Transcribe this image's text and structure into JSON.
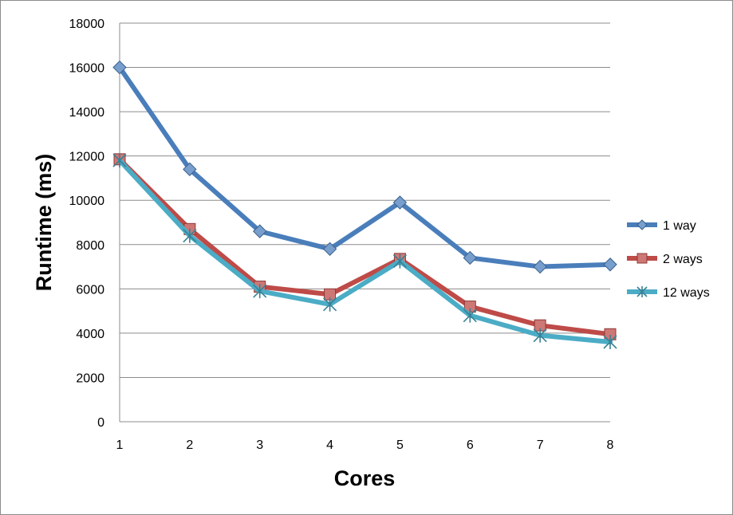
{
  "chart_data": {
    "type": "line",
    "title": "",
    "xlabel": "Cores",
    "ylabel": "Runtime (ms)",
    "x": [
      1,
      2,
      3,
      4,
      5,
      6,
      7,
      8
    ],
    "ylim": [
      0,
      18000
    ],
    "yticks": [
      0,
      2000,
      4000,
      6000,
      8000,
      10000,
      12000,
      14000,
      16000,
      18000
    ],
    "grid": "horizontal",
    "legend_position": "right",
    "series": [
      {
        "name": "1 way",
        "color": "#4a7ebb",
        "marker": "diamond",
        "values": [
          16000,
          11400,
          8600,
          7800,
          9900,
          7400,
          7000,
          7100
        ]
      },
      {
        "name": "2 ways",
        "color": "#be4b48",
        "marker": "square",
        "values": [
          11850,
          8700,
          6100,
          5750,
          7350,
          5200,
          4350,
          3950
        ]
      },
      {
        "name": "12 ways",
        "color": "#4bacc6",
        "marker": "star",
        "values": [
          11800,
          8400,
          5900,
          5300,
          7250,
          4800,
          3900,
          3600
        ]
      }
    ]
  }
}
